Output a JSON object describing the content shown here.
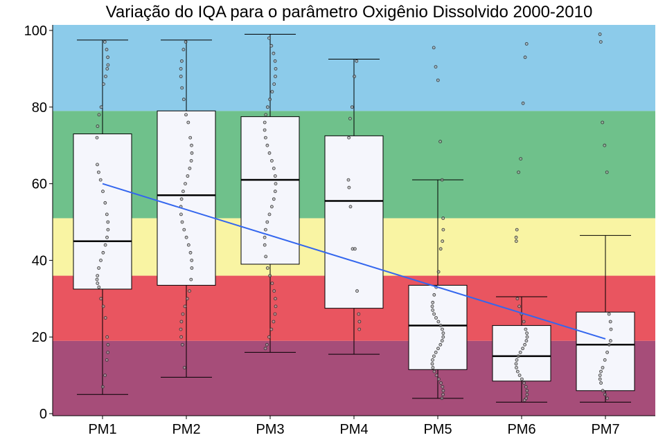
{
  "chart_data": {
    "type": "box",
    "title": "Variação do IQA para o parâmetro Oxigênio Dissolvido 2000-2010",
    "xlabel": "",
    "ylabel": "",
    "ylim": [
      0,
      100
    ],
    "yticks": [
      0,
      20,
      40,
      60,
      80,
      100
    ],
    "grid": false,
    "legend": "none",
    "categories": [
      "PM1",
      "PM2",
      "PM3",
      "PM4",
      "PM5",
      "PM6",
      "PM7"
    ],
    "bands": [
      {
        "from": 0,
        "to": 19,
        "color": "#a64d79"
      },
      {
        "from": 19,
        "to": 36,
        "color": "#e95560"
      },
      {
        "from": 36,
        "to": 51,
        "color": "#f9f4a3"
      },
      {
        "from": 51,
        "to": 79,
        "color": "#6fc18b"
      },
      {
        "from": 79,
        "to": 100,
        "color": "#8ccbea"
      }
    ],
    "boxes": [
      {
        "category": "PM1",
        "whisker_low": 5,
        "q1": 32.5,
        "median": 45,
        "q3": 73,
        "whisker_high": 97.5
      },
      {
        "category": "PM2",
        "whisker_low": 9.5,
        "q1": 33.5,
        "median": 57,
        "q3": 79,
        "whisker_high": 97.5
      },
      {
        "category": "PM3",
        "whisker_low": 16,
        "q1": 39,
        "median": 61,
        "q3": 77.5,
        "whisker_high": 99
      },
      {
        "category": "PM4",
        "whisker_low": 15.5,
        "q1": 27.5,
        "median": 55.5,
        "q3": 72.5,
        "whisker_high": 92.5
      },
      {
        "category": "PM5",
        "whisker_low": 4,
        "q1": 11.5,
        "median": 23,
        "q3": 33.5,
        "whisker_high": 61
      },
      {
        "category": "PM6",
        "whisker_low": 3,
        "q1": 8.5,
        "median": 15,
        "q3": 23,
        "whisker_high": 30.5
      },
      {
        "category": "PM7",
        "whisker_low": 3,
        "q1": 6,
        "median": 18,
        "q3": 26.5,
        "whisker_high": 46.5
      }
    ],
    "points": [
      {
        "category": "PM1",
        "values": [
          97,
          95,
          93,
          91,
          90,
          88,
          86,
          80,
          78,
          75,
          72,
          65,
          63,
          61,
          58,
          55,
          52,
          50,
          48,
          46,
          44,
          42,
          40,
          38,
          36,
          35,
          34,
          33,
          30,
          28,
          25,
          20,
          18,
          16,
          14,
          10,
          7
        ]
      },
      {
        "category": "PM2",
        "values": [
          97,
          95,
          92,
          90,
          88,
          85,
          82,
          78,
          76,
          72,
          70,
          68,
          66,
          64,
          62,
          60,
          58,
          56,
          54,
          52,
          50,
          48,
          46,
          44,
          42,
          40,
          38,
          35,
          32,
          30,
          28,
          26,
          24,
          22,
          20,
          18,
          12
        ]
      },
      {
        "category": "PM3",
        "values": [
          98,
          96,
          94,
          92,
          90,
          88,
          86,
          84,
          82,
          80,
          78,
          76,
          74,
          72,
          70,
          68,
          66,
          64,
          62,
          60,
          58,
          56,
          54,
          52,
          50,
          48,
          46,
          44,
          41,
          38,
          36,
          34,
          32,
          30,
          28,
          26,
          24,
          22,
          20,
          18,
          17
        ]
      },
      {
        "category": "PM4",
        "values": [
          92,
          88,
          80,
          77,
          72,
          61,
          59,
          54,
          43,
          43,
          32,
          26,
          24,
          22
        ]
      },
      {
        "category": "PM5",
        "values": [
          95.5,
          90.5,
          87,
          71,
          61,
          51,
          48,
          45,
          43,
          37,
          33,
          31,
          29,
          28,
          27,
          26,
          25,
          24,
          23,
          22,
          21,
          20,
          19,
          18,
          17,
          16,
          15,
          14,
          13,
          12,
          11,
          10,
          9,
          8,
          7,
          6,
          5,
          4
        ]
      },
      {
        "category": "PM6",
        "values": [
          96.5,
          93,
          81,
          66.5,
          63,
          48,
          46,
          45,
          30,
          28,
          26,
          24,
          22,
          21,
          20,
          19,
          18,
          17,
          16,
          15,
          14,
          13,
          12,
          11,
          10,
          9,
          8,
          7,
          6,
          5,
          4,
          3.5
        ]
      },
      {
        "category": "PM7",
        "values": [
          99,
          97,
          76,
          70,
          63,
          26,
          24,
          22,
          19,
          18,
          16,
          14,
          12,
          11,
          10,
          9,
          8,
          6,
          5,
          4
        ]
      }
    ],
    "trend": {
      "color": "#3366ee",
      "from": {
        "category": "PM1",
        "y": 60
      },
      "to": {
        "category": "PM7",
        "y": 19.5
      }
    },
    "colors": {
      "box_fill": "#f5f6fc",
      "box_stroke": "#000000",
      "point_stroke": "#333333",
      "point_fill": "#aaaaaa"
    }
  }
}
